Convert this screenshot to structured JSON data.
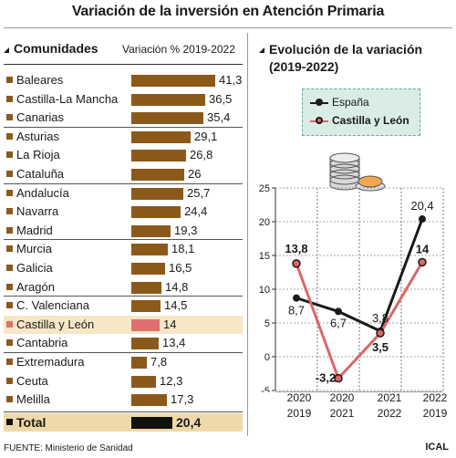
{
  "title": "Variación de la inversión en Atención Primaria",
  "left": {
    "heading": "Comunidades",
    "subheading": "Variación % 2019-2022",
    "rows": [
      {
        "name": "Baleares",
        "value": 41.3,
        "label": "41,3"
      },
      {
        "name": "Castilla-La Mancha",
        "value": 36.5,
        "label": "36,5"
      },
      {
        "name": "Canarias",
        "value": 35.4,
        "label": "35,4"
      },
      {
        "name": "Asturias",
        "value": 29.1,
        "label": "29,1"
      },
      {
        "name": "La Rioja",
        "value": 26.8,
        "label": "26,8"
      },
      {
        "name": "Cataluña",
        "value": 26,
        "label": "26"
      },
      {
        "name": "Andalucía",
        "value": 25.7,
        "label": "25,7"
      },
      {
        "name": "Navarra",
        "value": 24.4,
        "label": "24,4"
      },
      {
        "name": "Madrid",
        "value": 19.3,
        "label": "19,3"
      },
      {
        "name": "Murcia",
        "value": 18.1,
        "label": "18,1"
      },
      {
        "name": "Galicia",
        "value": 16.5,
        "label": "16,5"
      },
      {
        "name": "Aragón",
        "value": 14.8,
        "label": "14,8"
      },
      {
        "name": "C. Valenciana",
        "value": 14.5,
        "label": "14,5"
      },
      {
        "name": "Castilla y León",
        "value": 14,
        "label": "14"
      },
      {
        "name": "Cantabria",
        "value": 13.4,
        "label": "13,4"
      },
      {
        "name": "Extremadura",
        "value": 7.8,
        "label": "7,8"
      },
      {
        "name": "Ceuta",
        "value": 12.3,
        "label": "12,3"
      },
      {
        "name": "Melilla",
        "value": 17.3,
        "label": "17,3"
      },
      {
        "name": "Total",
        "value": 20.4,
        "label": "20,4"
      }
    ],
    "highlight": "Castilla y León",
    "separators_before": [
      3,
      6,
      9,
      12,
      15
    ],
    "bar_color": "#8b5a1b",
    "highlight_color": "#e07070"
  },
  "right": {
    "title_line1": "Evolución de la variación",
    "title_line2": "(2019-2022)",
    "legend": [
      {
        "name": "España",
        "color": "#1a1a1a"
      },
      {
        "name": "Castilla y León",
        "color": "#d9666a"
      }
    ]
  },
  "chart_data": [
    {
      "type": "bar",
      "title": "Variación de la inversión en Atención Primaria",
      "ylabel": "Variación % 2019-2022",
      "categories": [
        "Baleares",
        "Castilla-La Mancha",
        "Canarias",
        "Asturias",
        "La Rioja",
        "Cataluña",
        "Andalucía",
        "Navarra",
        "Madrid",
        "Murcia",
        "Galicia",
        "Aragón",
        "C. Valenciana",
        "Castilla y León",
        "Cantabria",
        "Extremadura",
        "Ceuta",
        "Melilla",
        "Total"
      ],
      "values": [
        41.3,
        36.5,
        35.4,
        29.1,
        26.8,
        26,
        25.7,
        24.4,
        19.3,
        18.1,
        16.5,
        14.8,
        14.5,
        14,
        13.4,
        7.8,
        12.3,
        17.3,
        20.4
      ]
    },
    {
      "type": "line",
      "title": "Evolución de la variación (2019-2022)",
      "categories": [
        [
          "2020",
          "2019"
        ],
        [
          "2020",
          "2021"
        ],
        [
          "2021",
          "2022"
        ],
        [
          "2022",
          "2019"
        ]
      ],
      "ylim": [
        -5,
        25
      ],
      "yticks": [
        -5,
        0,
        5,
        10,
        15,
        20,
        25
      ],
      "grid": true,
      "legend_position": "top",
      "series": [
        {
          "name": "España",
          "color": "#1a1a1a",
          "values": [
            8.7,
            6.7,
            3.8,
            20.4
          ],
          "labels": [
            "8,7",
            "6,7",
            "3,8",
            "20,4"
          ]
        },
        {
          "name": "Castilla y León",
          "color": "#d9666a",
          "values": [
            13.8,
            -3.2,
            3.5,
            14
          ],
          "labels": [
            "13,8",
            "-3,2",
            "3,5",
            "14"
          ]
        }
      ]
    }
  ],
  "footer": {
    "source": "FUENTE: Ministerio de Sanidad",
    "brand": "ICAL"
  }
}
